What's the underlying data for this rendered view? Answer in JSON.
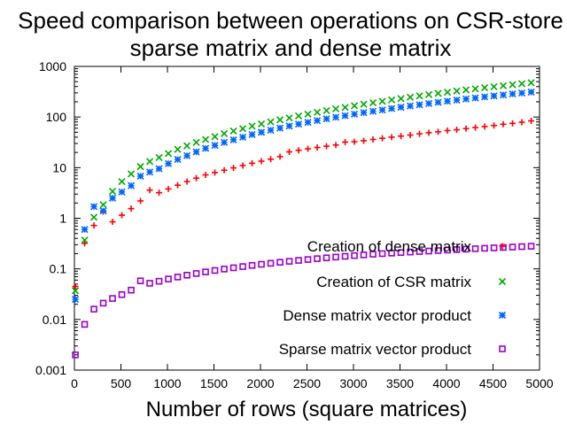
{
  "chart_data": {
    "type": "scatter",
    "title_lines": [
      "Speed comparison between operations on CSR-store",
      "sparse matrix and dense matrix"
    ],
    "xlabel": "Number of rows (square matrices)",
    "ylabel": "",
    "xlim": [
      0,
      5000
    ],
    "ylim": [
      0.001,
      1000
    ],
    "yscale": "log",
    "grid": false,
    "legend_position": "right",
    "x_ticks": [
      "0",
      "500",
      "1000",
      "1500",
      "2000",
      "2500",
      "3000",
      "3500",
      "4000",
      "4500",
      "5000"
    ],
    "y_ticks": [
      "0.001",
      "0.01",
      "0.1",
      "1",
      "10",
      "100",
      "1000"
    ],
    "x": [
      10,
      110,
      210,
      310,
      410,
      510,
      610,
      710,
      810,
      910,
      1010,
      1110,
      1210,
      1310,
      1410,
      1510,
      1610,
      1710,
      1810,
      1910,
      2010,
      2110,
      2210,
      2310,
      2410,
      2510,
      2610,
      2710,
      2810,
      2910,
      3010,
      3110,
      3210,
      3310,
      3410,
      3510,
      3610,
      3710,
      3810,
      3910,
      4010,
      4110,
      4210,
      4310,
      4410,
      4510,
      4610,
      4710,
      4810,
      4910
    ],
    "series": [
      {
        "name": "Creation of dense matrix",
        "color": "#ff0000",
        "marker": "plus",
        "values": [
          0.045,
          0.32,
          0.72,
          1.35,
          0.85,
          1.15,
          1.55,
          2.2,
          3.6,
          3.2,
          3.8,
          4.5,
          5.3,
          6.2,
          7.2,
          8.0,
          8.9,
          9.9,
          11.0,
          12.2,
          13.4,
          14.7,
          16.5,
          20.5,
          22.0,
          23.5,
          25.0,
          26.5,
          28.0,
          32.0,
          32.5,
          34.0,
          36.0,
          38.0,
          40.0,
          42.0,
          44.0,
          46.5,
          49.0,
          51.0,
          54.0,
          56.0,
          59.0,
          62.0,
          65.0,
          68.0,
          72.0,
          75.0,
          79.0,
          84.0
        ]
      },
      {
        "name": "Creation of CSR matrix",
        "color": "#00aa00",
        "marker": "cross",
        "values": [
          0.037,
          0.37,
          1.05,
          1.85,
          3.4,
          5.3,
          7.5,
          10.5,
          13.2,
          15.8,
          19.0,
          23.0,
          27.0,
          31.5,
          36.0,
          41.0,
          47.0,
          53.0,
          59.0,
          66.0,
          73.0,
          80.0,
          88.0,
          96.0,
          105.0,
          114.0,
          124.0,
          134.0,
          145.0,
          155.0,
          167.0,
          179.0,
          191.0,
          204.0,
          218.0,
          232.0,
          246.0,
          261.0,
          277.0,
          293.0,
          309.0,
          326.0,
          343.0,
          361.0,
          379.0,
          397.0,
          416.0,
          435.0,
          455.0,
          475.0
        ]
      },
      {
        "name": "Dense matrix vector product",
        "color": "#0066ff",
        "marker": "star",
        "values": [
          0.025,
          0.6,
          1.7,
          1.4,
          2.5,
          3.3,
          4.4,
          6.8,
          8.2,
          9.5,
          12.0,
          14.5,
          17.2,
          20.5,
          24.0,
          27.5,
          31.5,
          35.5,
          40.0,
          45.0,
          50.0,
          55.0,
          60.5,
          66.5,
          72.5,
          78.5,
          85.0,
          92.0,
          99.0,
          106.0,
          114.0,
          122.0,
          130.0,
          138.0,
          147.0,
          156.0,
          165.0,
          175.0,
          185.0,
          195.0,
          205.0,
          216.0,
          227.0,
          238.0,
          250.0,
          261.0,
          273.0,
          286.0,
          298.0,
          311.0
        ]
      },
      {
        "name": "Sparse matrix vector product",
        "color": "#9900cc",
        "marker": "square",
        "values": [
          0.002,
          0.008,
          0.016,
          0.021,
          0.026,
          0.031,
          0.038,
          0.058,
          0.052,
          0.057,
          0.063,
          0.069,
          0.075,
          0.081,
          0.087,
          0.093,
          0.099,
          0.105,
          0.111,
          0.117,
          0.123,
          0.129,
          0.135,
          0.141,
          0.147,
          0.153,
          0.159,
          0.165,
          0.171,
          0.177,
          0.183,
          0.189,
          0.195,
          0.2,
          0.205,
          0.21,
          0.215,
          0.22,
          0.225,
          0.23,
          0.235,
          0.24,
          0.245,
          0.25,
          0.255,
          0.26,
          0.265,
          0.27,
          0.275,
          0.28
        ]
      }
    ]
  }
}
